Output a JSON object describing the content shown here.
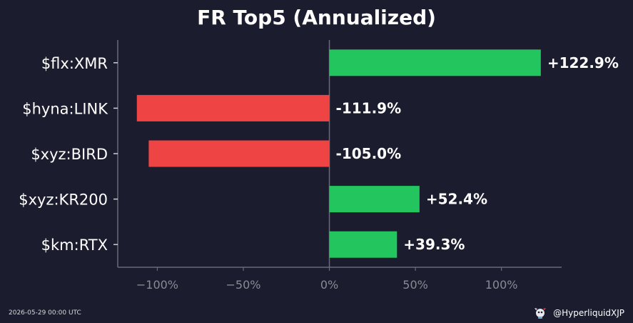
{
  "chart_data": {
    "type": "bar",
    "orientation": "horizontal",
    "title": "FR Top5 (Annualized)",
    "categories": [
      "$flx:XMR",
      "$hyna:LINK",
      "$xyz:BIRD",
      "$xyz:KR200",
      "$km:RTX"
    ],
    "values": [
      122.9,
      -111.9,
      -105.0,
      52.4,
      39.3
    ],
    "value_labels": [
      "+122.9%",
      "-111.9%",
      "-105.0%",
      "+52.4%",
      "+39.3%"
    ],
    "xlim": [
      -123,
      135
    ],
    "xticks": [
      -100,
      -50,
      0,
      50,
      100
    ],
    "xtick_labels": [
      "−100%",
      "−50%",
      "0%",
      "50%",
      "100%"
    ],
    "xlabel": "",
    "ylabel": "",
    "grid": false,
    "positive_color": "#22c55e",
    "negative_color": "#ef4444"
  },
  "footer": {
    "timestamp": "2026-05-29 00:00 UTC",
    "handle": "@HyperliquidXJP",
    "logo_icon": "mascot-icon"
  },
  "colors": {
    "background": "#1b1c2e",
    "axis": "#6b6b78",
    "tick_label": "#8a8a95",
    "text": "#ffffff"
  }
}
